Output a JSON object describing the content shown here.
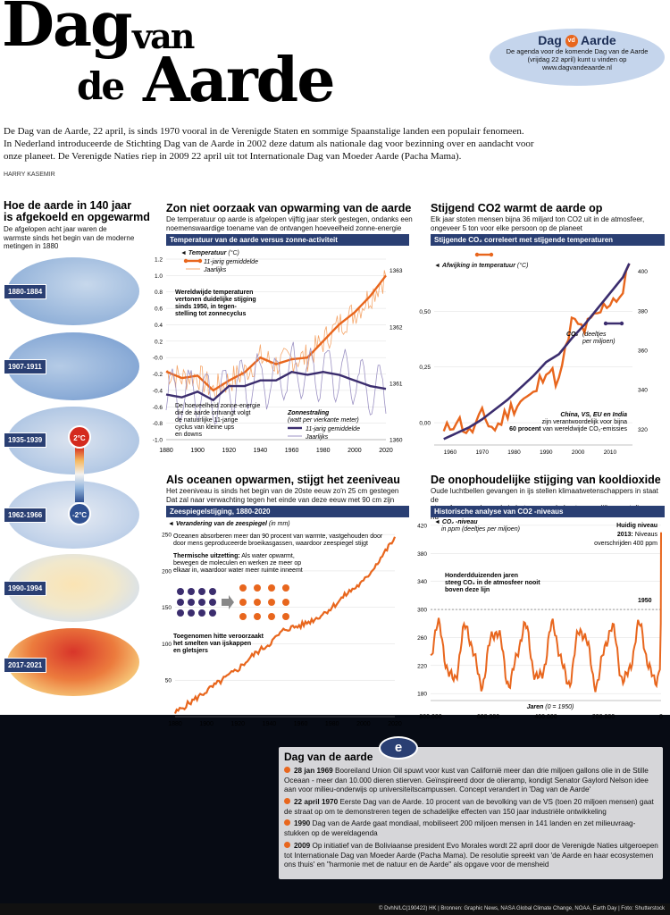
{
  "masthead": {
    "line1": "Dag",
    "line1b": "van",
    "line2a": "de",
    "line2b": "Aarde"
  },
  "promo": {
    "logo": "Dag",
    "logo_badge": "vd",
    "logo_end": "Aarde",
    "text1": "De agenda voor de komende Dag van de Aarde",
    "text2": "(vrijdag 22 april) kunt u vinden op",
    "text3": "www.dagvandeaarde.nl"
  },
  "intro": {
    "p1": "De Dag van de Aarde, 22 april,  is sinds 1970 vooral in de Verenigde Staten en sommige Spaanstalige landen een populair fenomeen.",
    "p2": "In Nederland introduceerde de Stichting Dag van de Aarde in 2002 deze datum als nationale dag voor bezinning over en aandacht voor",
    "p3": "onze planeet. De Verenigde Naties riep in 2009 22 april uit tot Internationale Dag van Moeder Aarde (Pacha Mama).",
    "author": "HARRY KASEMIR"
  },
  "maps": {
    "title1": "Hoe de aarde in 140 jaar",
    "title2": "is afgekoeld en opgewarmd",
    "sub1": "De afgelopen acht jaar waren de",
    "sub2": "warmste sinds het begin van de moderne",
    "sub3": "metingen in 1880",
    "periods": [
      "1880-1884",
      "1907-1911",
      "1935-1939",
      "1962-1966",
      "1990-1994",
      "2017-2021"
    ],
    "scale_hot": "2°C",
    "scale_cold": "-2°C"
  },
  "chart1": {
    "title": "Zon niet oorzaak van opwarming van de aarde",
    "sub1": "De temperatuur op aarde is afgelopen vijftig jaar sterk gestegen, ondanks een",
    "sub2": "noemenswaardige toename van de ontvangen hoeveelheid zonne-energie",
    "bar": "Temperatuur van de aarde versus zonne-activiteit",
    "legend_temp": "Temperatuur",
    "legend_temp_unit": "(°C)",
    "legend_avg": "11-jarig gemiddelde",
    "legend_yearly": "Jaarlijks",
    "note1": "Wereldwijde temperaturen",
    "note2": "vertonen duidelijke stijging",
    "note3": "sinds 1950, in tegen-",
    "note4": "stelling tot zonnecyclus",
    "note5": "De hoeveelheid zonne-energie",
    "note6": "die de aarde ontvangt volgt",
    "note7": "de natuurlijke 11-jarige",
    "note8": "cyclus van kleine ups",
    "note9": "en downs",
    "legend_sun": "Zonnestraling",
    "legend_sun_unit": "(watt per vierkante meter)",
    "legend_sun_avg": "11-jarig gemiddelde",
    "legend_sun_yearly": "Jaarlijks",
    "yticks_left": [
      "1.2",
      "1.0",
      "0.8",
      "0.6",
      "0.4",
      "0.2",
      "-0.0",
      "-0.2",
      "-0.4",
      "-0.6",
      "-0.8",
      "-1.0"
    ],
    "yticks_right": [
      "1363",
      "1362",
      "1361",
      "1360"
    ],
    "xticks": [
      "1880",
      "1900",
      "1920",
      "1940",
      "1960",
      "1980",
      "2000",
      "2020"
    ]
  },
  "chart2": {
    "title": "Stijgend CO2 warmt de aarde op",
    "sub1": "Elk jaar stoten mensen bijna 36 miljard ton CO2 uit in de atmosfeer,",
    "sub2": "ongeveer 5 ton voor elke persoon op de planeet",
    "bar": "Stijgende CO₂ correleert met stijgende temperaturen",
    "legend_temp": "Afwijking in temperatuur",
    "legend_temp_unit": "(°C)",
    "legend_co2a": "CO₂",
    "legend_co2b": "(deeltjes",
    "legend_co2c": "per miljoen)",
    "note1": "China, VS, EU en India",
    "note2": "zijn verantwoordelijk voor bijna",
    "note3": "60 procent",
    "note4": "van wereldwijde CO₂-emissies",
    "yticks_left": [
      "0,50",
      "0,25",
      "0,00"
    ],
    "yticks_right": [
      "400",
      "380",
      "360",
      "340",
      "320"
    ],
    "xticks": [
      "1960",
      "1970",
      "1980",
      "1990",
      "2000",
      "2010"
    ]
  },
  "chart3": {
    "title": "Als oceanen opwarmen, stijgt het zeeniveau",
    "sub1": "Het zeeniveau is sinds het begin van de 20ste eeuw zo'n 25 cm gestegen",
    "sub2": "Dat zal naar verwachting tegen het einde van deze eeuw met 90 cm zijn",
    "bar": "Zeespiegelstijging, 1880-2020",
    "legend": "Verandering van de zeespiegel",
    "legend_unit": "(in mm)",
    "note1": "Oceanen absorberen meer dan 90 procent van warmte, vastgehouden  door",
    "note2": "door mens geproduceerde broeikasgassen, waardoor zeespiegel stijgt",
    "note3": "Thermische uitzetting:",
    "note3b": "Als water opwarmt,",
    "note4": "bewegen de moleculen en werken ze meer op",
    "note5": "elkaar in, waardoor water meer ruimte inneemt",
    "note6": "Toegenomen hitte veroorzaakt",
    "note7": "het smelten van ijskappen",
    "note8": "en gletsjers",
    "yticks": [
      "250",
      "200",
      "150",
      "100",
      "50"
    ],
    "xticks": [
      "1880",
      "1900",
      "1920",
      "1940",
      "1960",
      "1980",
      "2000",
      "2020"
    ]
  },
  "chart4": {
    "title": "De onophoudelijke stijging van kooldioxide",
    "sub1": "Oude luchtbellen gevangen in ijs stellen klimaatwetenschappers in staat de",
    "sub2": "atmosfeer van de aarde in het verre verleden te vergelijken met die van nu",
    "bar": "Historische analyse van CO2 -niveaus",
    "legend": "CO₂ -niveau",
    "legend2": "in ppm (deeltjes per miljoen)",
    "note1": "Huidig niveau",
    "note2": "2013:",
    "note2b": "Niveaus",
    "note3": "overschrijden 400 ppm",
    "note4": "Honderdduizenden jaren",
    "note5": "steeg CO₂ in de atmosfeer nooit",
    "note6": "boven deze lijn",
    "mark_1950": "1950",
    "xlabel": "Jaren",
    "xlabel2": "(0 = 1950)",
    "yticks": [
      "420",
      "380",
      "340",
      "300",
      "260",
      "220",
      "180"
    ],
    "xticks": [
      "800.000",
      "600.000",
      "400.000",
      "200.000",
      "0"
    ]
  },
  "timeline": {
    "title": "Dag van de aarde",
    "items": [
      {
        "year": "28 jan 1969",
        "text": "Booreiland Union Oil spuwt voor kust van Californië meer dan drie miljoen gallons olie in de Stille Oceaan - meer dan 10.000 dieren stierven. Geïnspireerd door de olieramp, kondigt Senator Gaylord Nelson idee aan voor milieu-onderwijs op universiteitscampussen. Concept verandert in 'Dag van de Aarde'"
      },
      {
        "year": "22 april 1970",
        "text": "Eerste Dag van de Aarde. 10 procent van de bevolking van de VS (toen 20 miljoen mensen) gaat de straat op om te demonstreren tegen de schadelijke effecten van 150 jaar industriële ontwikkeling"
      },
      {
        "year": "1990",
        "text": "Dag van de Aarde gaat mondiaal, mobiliseert 200 miljoen mensen in 141 landen en zet milieuvraag-stukken op de wereldagenda"
      },
      {
        "year": "2009",
        "text": "Op initiatief van de Boliviaanse president Evo Morales wordt 22 april door de Verenigde Naties uitgeroepen tot Internationale Dag van Moeder Aarde (Pacha Mama). De resolutie spreekt van 'de Aarde en haar ecosystemen ons thuis' en \"harmonie met de natuur en de Aarde\" als opgave voor de mensheid"
      }
    ]
  },
  "footer": "© DvhN/LC(190422)  HK  |  Bronnen: Graphic News, NASA Global Climate Change, NOAA, Earth Day  |  Foto: Shutterstock",
  "colors": {
    "accent": "#e8661d",
    "navy": "#2a3f73",
    "purple": "#3b2d6e"
  },
  "chart_data": [
    {
      "type": "line",
      "title": "Zon niet oorzaak van opwarming van de aarde",
      "x": [
        1880,
        1890,
        1900,
        1910,
        1920,
        1930,
        1940,
        1950,
        1960,
        1970,
        1980,
        1990,
        2000,
        2010,
        2020
      ],
      "series": [
        {
          "name": "Temperatuur 11-jarig gemiddelde",
          "values": [
            -0.17,
            -0.25,
            -0.22,
            -0.4,
            -0.28,
            -0.18,
            0.0,
            -0.08,
            -0.02,
            0.0,
            0.2,
            0.4,
            0.55,
            0.75,
            1.0
          ]
        },
        {
          "name": "Zonnestraling 11-jarig gemiddelde",
          "values": [
            1360.8,
            1360.75,
            1360.85,
            1360.7,
            1360.95,
            1360.95,
            1361.05,
            1361.05,
            1361.2,
            1361.15,
            1361.2,
            1361.15,
            1361.05,
            1360.95,
            1360.9
          ]
        }
      ],
      "ylim": [
        -1.0,
        1.2
      ],
      "ylim_right": [
        1360,
        1363.2
      ]
    },
    {
      "type": "line",
      "title": "Stijgend CO2 warmt de aarde op",
      "x": [
        1958,
        1962,
        1966,
        1970,
        1974,
        1978,
        1982,
        1986,
        1990,
        1994,
        1998,
        2002,
        2006,
        2010,
        2014,
        2016
      ],
      "series": [
        {
          "name": "Afwijking in temperatuur",
          "values": [
            -0.05,
            0.02,
            -0.05,
            0.03,
            -0.03,
            0.05,
            0.1,
            0.12,
            0.25,
            0.18,
            0.45,
            0.42,
            0.48,
            0.55,
            0.58,
            0.72
          ]
        },
        {
          "name": "CO₂",
          "values": [
            315,
            318,
            321,
            325,
            330,
            335,
            341,
            347,
            354,
            358,
            366,
            373,
            381,
            389,
            397,
            404
          ]
        }
      ],
      "ylim": [
        -0.1,
        0.75
      ],
      "ylim_right": [
        312,
        408
      ]
    },
    {
      "type": "line",
      "title": "Als oceanen opwarmen, stijgt het zeeniveau",
      "x": [
        1880,
        1890,
        1900,
        1910,
        1920,
        1930,
        1940,
        1950,
        1960,
        1970,
        1980,
        1990,
        2000,
        2010,
        2020
      ],
      "series": [
        {
          "name": "Verandering van de zeespiegel",
          "values": [
            5,
            20,
            35,
            50,
            65,
            85,
            100,
            120,
            125,
            135,
            150,
            170,
            185,
            215,
            245
          ]
        }
      ],
      "ylim": [
        0,
        260
      ]
    },
    {
      "type": "line",
      "title": "De onophoudelijke stijging van kooldioxide",
      "x": [
        -800000,
        -700000,
        -600000,
        -500000,
        -400000,
        -300000,
        -200000,
        -100000,
        0
      ],
      "series": [
        {
          "name": "CO₂ -niveau",
          "values": [
            200,
            240,
            190,
            260,
            280,
            270,
            230,
            250,
            410
          ]
        }
      ],
      "ylim": [
        170,
        425
      ]
    }
  ]
}
